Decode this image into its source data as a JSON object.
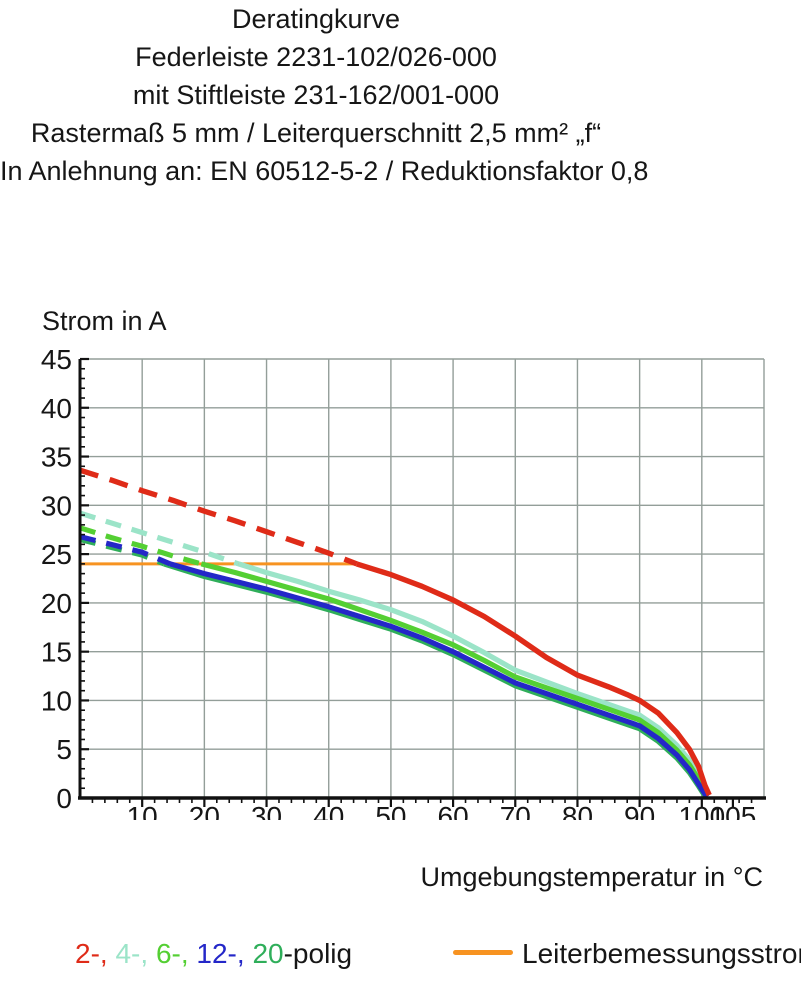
{
  "page": {
    "background": "#ffffff",
    "text_color": "#161616"
  },
  "title_lines": [
    "Deratingkurve",
    "Federleiste 2231-102/026-000",
    "mit Stiftleiste 231-162/001-000",
    "Rastermaß 5 mm / Leiterquerschnitt 2,5 mm² „f“",
    "In Anlehnung an: EN 60512-5-2 / Reduktionsfaktor 0,8"
  ],
  "y_axis_title": "Strom in A",
  "x_axis_title": "Umgebungstemperatur in °C",
  "legend": {
    "pole_items": [
      {
        "label": "2-,",
        "color": "#df2b18"
      },
      {
        "label": "4-,",
        "color": "#9be4c8"
      },
      {
        "label": "6-,",
        "color": "#54cf33"
      },
      {
        "label": "12-,",
        "color": "#2427c8"
      },
      {
        "label": "20",
        "color": "#2fae5a"
      }
    ],
    "pole_suffix": "-polig",
    "rated": {
      "label": "Leiterbemessungsstrom",
      "color": "#f79321"
    }
  },
  "chart_data": {
    "type": "line",
    "title": "Deratingkurve",
    "xlabel": "Umgebungstemperatur in °C",
    "ylabel": "Strom in A",
    "xlim": [
      0,
      110
    ],
    "ylim": [
      0,
      45
    ],
    "x_ticks_labeled": [
      10,
      20,
      30,
      40,
      50,
      60,
      70,
      80,
      90,
      100,
      105
    ],
    "x_minor_step": 2,
    "y_ticks_labeled": [
      0,
      5,
      10,
      15,
      20,
      25,
      30,
      35,
      40,
      45
    ],
    "y_minor_step": 1,
    "grid": {
      "x_step": 10,
      "y_step": 5,
      "color": "#939e99"
    },
    "axis_color": "#111111",
    "rated_current": {
      "name": "Leiterbemessungsstrom",
      "value_a": 24,
      "x_from": 0,
      "x_to": 44.5,
      "color": "#f79321",
      "width": 3
    },
    "note": "dashed above rated current, solid below; current in A vs ambient temperature in °C",
    "series": [
      {
        "name": "4-polig",
        "color": "#9be4c8",
        "width": 5.2,
        "dash": "16 11",
        "dashed_points": [
          [
            0,
            29.2
          ],
          [
            5,
            28.2
          ],
          [
            10,
            27.2
          ],
          [
            15,
            26.2
          ],
          [
            20,
            25.2
          ],
          [
            25.5,
            24.0
          ]
        ],
        "solid_points": [
          [
            25.5,
            24.0
          ],
          [
            30,
            23.1
          ],
          [
            35,
            22.2
          ],
          [
            40,
            21.2
          ],
          [
            45,
            20.3
          ],
          [
            50,
            19.3
          ],
          [
            55,
            18.1
          ],
          [
            60,
            16.6
          ],
          [
            65,
            14.9
          ],
          [
            70,
            13.1
          ],
          [
            75,
            11.9
          ],
          [
            80,
            10.7
          ],
          [
            85,
            9.6
          ],
          [
            90,
            8.5
          ],
          [
            93,
            7.2
          ],
          [
            96,
            5.4
          ],
          [
            98,
            3.9
          ],
          [
            99.5,
            2.3
          ],
          [
            100.5,
            0.8
          ],
          [
            100.9,
            0.2
          ]
        ]
      },
      {
        "name": "6-polig",
        "color": "#54cf33",
        "width": 5.2,
        "dash": "16 11",
        "dashed_points": [
          [
            0,
            27.7
          ],
          [
            5,
            26.7
          ],
          [
            10,
            25.8
          ],
          [
            15,
            24.8
          ],
          [
            19.5,
            24.0
          ]
        ],
        "solid_points": [
          [
            19.5,
            24.0
          ],
          [
            25,
            23.1
          ],
          [
            30,
            22.2
          ],
          [
            35,
            21.3
          ],
          [
            40,
            20.4
          ],
          [
            45,
            19.3
          ],
          [
            50,
            18.2
          ],
          [
            55,
            17.0
          ],
          [
            60,
            15.7
          ],
          [
            65,
            14.1
          ],
          [
            70,
            12.4
          ],
          [
            75,
            11.3
          ],
          [
            80,
            10.2
          ],
          [
            85,
            9.1
          ],
          [
            90,
            8.0
          ],
          [
            93,
            6.7
          ],
          [
            96,
            4.9
          ],
          [
            98,
            3.4
          ],
          [
            99.5,
            1.9
          ],
          [
            100.5,
            0.6
          ],
          [
            100.9,
            0.2
          ]
        ]
      },
      {
        "name": "20-polig",
        "color": "#2fae5a",
        "width": 5.2,
        "dash": "16 11",
        "dashed_points": [
          [
            0,
            26.5
          ],
          [
            5,
            25.7
          ],
          [
            10,
            24.9
          ],
          [
            13.5,
            24.0
          ]
        ],
        "solid_points": [
          [
            13.5,
            24.0
          ],
          [
            20,
            22.7
          ],
          [
            25,
            21.9
          ],
          [
            30,
            21.1
          ],
          [
            35,
            20.2
          ],
          [
            40,
            19.3
          ],
          [
            45,
            18.3
          ],
          [
            50,
            17.3
          ],
          [
            55,
            16.1
          ],
          [
            60,
            14.7
          ],
          [
            65,
            13.1
          ],
          [
            70,
            11.5
          ],
          [
            75,
            10.4
          ],
          [
            80,
            9.3
          ],
          [
            85,
            8.2
          ],
          [
            90,
            7.1
          ],
          [
            93,
            5.8
          ],
          [
            96,
            4.1
          ],
          [
            98,
            2.6
          ],
          [
            99.5,
            1.2
          ],
          [
            100.4,
            0.3
          ],
          [
            100.7,
            0.1
          ]
        ]
      },
      {
        "name": "12-polig",
        "color": "#2427c8",
        "width": 5.2,
        "dash": "16 11",
        "dashed_points": [
          [
            0,
            26.8
          ],
          [
            5,
            26.0
          ],
          [
            10,
            25.2
          ],
          [
            14.5,
            24.0
          ]
        ],
        "solid_points": [
          [
            14.5,
            24.0
          ],
          [
            20,
            23.0
          ],
          [
            25,
            22.2
          ],
          [
            30,
            21.4
          ],
          [
            35,
            20.5
          ],
          [
            40,
            19.6
          ],
          [
            45,
            18.6
          ],
          [
            50,
            17.6
          ],
          [
            55,
            16.4
          ],
          [
            60,
            15.0
          ],
          [
            65,
            13.4
          ],
          [
            70,
            11.8
          ],
          [
            75,
            10.7
          ],
          [
            80,
            9.6
          ],
          [
            85,
            8.5
          ],
          [
            90,
            7.4
          ],
          [
            93,
            6.1
          ],
          [
            96,
            4.4
          ],
          [
            98,
            2.9
          ],
          [
            99.5,
            1.4
          ],
          [
            100.4,
            0.5
          ],
          [
            100.8,
            0.1
          ]
        ]
      },
      {
        "name": "2-polig",
        "color": "#df2b18",
        "width": 5.4,
        "dash": "19 12",
        "dashed_points": [
          [
            0,
            33.6
          ],
          [
            5,
            32.6
          ],
          [
            10,
            31.5
          ],
          [
            15,
            30.5
          ],
          [
            20,
            29.4
          ],
          [
            25,
            28.4
          ],
          [
            30,
            27.3
          ],
          [
            35,
            26.2
          ],
          [
            40,
            25.1
          ],
          [
            44.5,
            24.0
          ]
        ],
        "solid_points": [
          [
            44.5,
            24.0
          ],
          [
            50,
            22.9
          ],
          [
            55,
            21.7
          ],
          [
            60,
            20.3
          ],
          [
            65,
            18.6
          ],
          [
            70,
            16.6
          ],
          [
            75,
            14.4
          ],
          [
            80,
            12.6
          ],
          [
            85,
            11.4
          ],
          [
            88,
            10.6
          ],
          [
            90,
            10.0
          ],
          [
            93,
            8.7
          ],
          [
            96,
            6.7
          ],
          [
            98,
            5.0
          ],
          [
            99.5,
            3.2
          ],
          [
            100.5,
            1.3
          ],
          [
            101.2,
            0.3
          ]
        ]
      }
    ]
  }
}
